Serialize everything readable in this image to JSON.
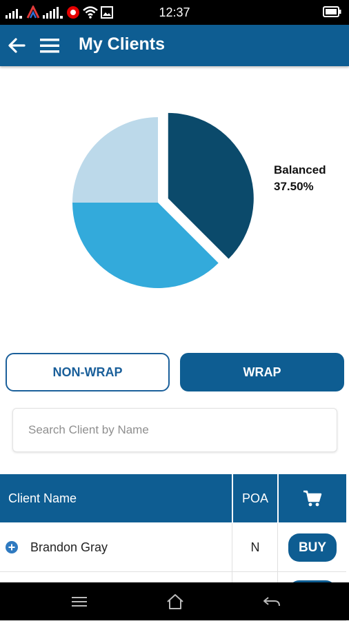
{
  "status_bar": {
    "time": "12:37",
    "icons": [
      "signal-icon",
      "signal-icon",
      "vodafone-icon",
      "wifi-icon",
      "image-icon",
      "battery-icon"
    ]
  },
  "app_bar": {
    "title": "My Clients",
    "back_icon": "back-arrow-icon",
    "menu_icon": "hamburger-menu-icon"
  },
  "chart_data": {
    "type": "pie",
    "slices": [
      {
        "name": "Balanced",
        "value": 37.5,
        "color": "#0b4a6b",
        "exploded": true
      },
      {
        "name": "",
        "value": 37.5,
        "color": "#33aadb"
      },
      {
        "name": "",
        "value": 25.0,
        "color": "#bcd9ea"
      }
    ],
    "callout": {
      "label": "Balanced",
      "value_text": "37.50%"
    }
  },
  "toggle": {
    "non_wrap_label": "NON-WRAP",
    "wrap_label": "WRAP",
    "selected": "WRAP"
  },
  "search": {
    "placeholder": "Search Client by Name",
    "value": ""
  },
  "table": {
    "headers": {
      "name": "Client Name",
      "poa": "POA",
      "cart_icon": "cart-icon"
    },
    "rows": [
      {
        "name": "Brandon Gray",
        "poa": "N",
        "action": "BUY"
      },
      {
        "name": "",
        "poa": "",
        "action": ""
      }
    ]
  },
  "nav_bar": {
    "icons": [
      "menu-icon",
      "home-icon",
      "back-icon"
    ]
  },
  "colors": {
    "primary": "#0e5d92",
    "accent_dark": "#0b4a6b",
    "accent_mid": "#33aadb",
    "accent_light": "#bcd9ea"
  }
}
